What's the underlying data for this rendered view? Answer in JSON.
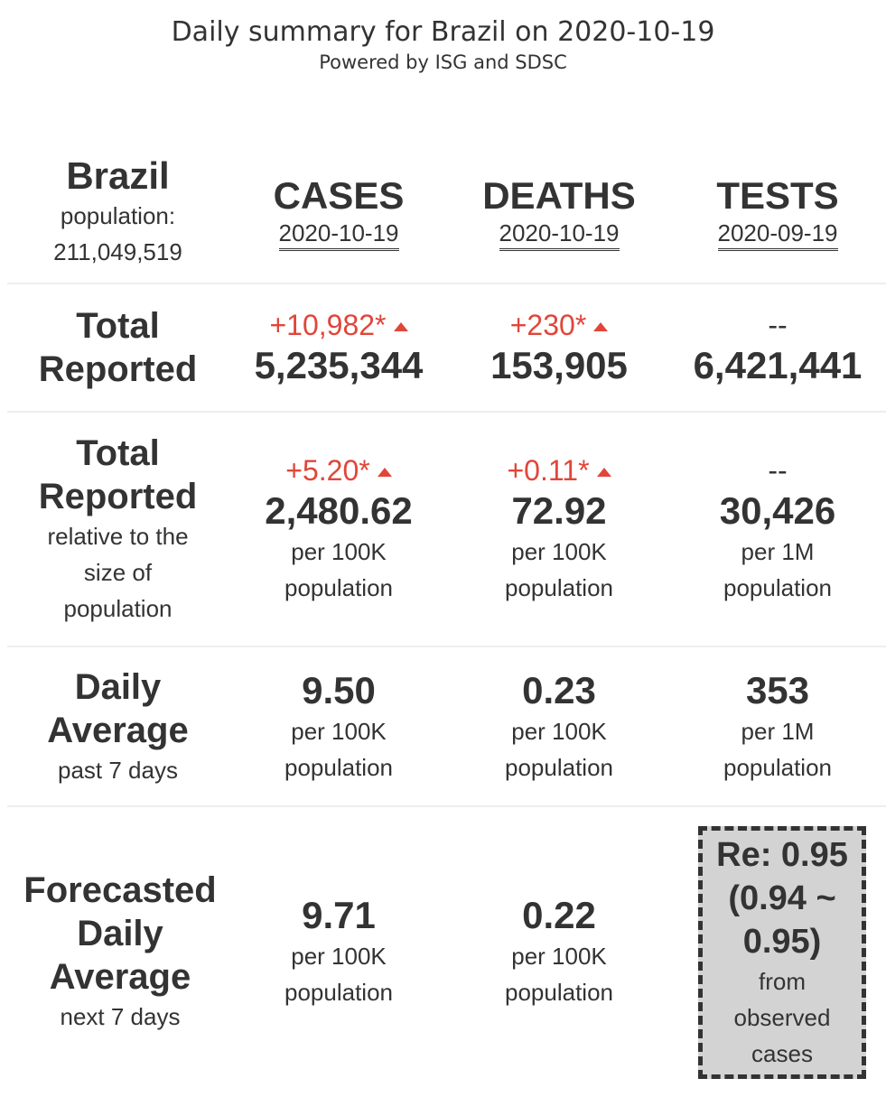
{
  "header": {
    "title": "Daily summary for Brazil on 2020-10-19",
    "subtitle": "Powered by ISG and SDSC"
  },
  "country": {
    "name": "Brazil",
    "population_label": "population:",
    "population_value": "211,049,519"
  },
  "columns": [
    {
      "title": "CASES",
      "date": "2020-10-19"
    },
    {
      "title": "DEATHS",
      "date": "2020-10-19"
    },
    {
      "title": "TESTS",
      "date": "2020-09-19"
    }
  ],
  "rows": {
    "total_reported": {
      "label_line1": "Total",
      "label_line2": "Reported",
      "cases": {
        "delta": "+10,982*",
        "value": "5,235,344"
      },
      "deaths": {
        "delta": "+230*",
        "value": "153,905"
      },
      "tests": {
        "delta": "--",
        "value": "6,421,441"
      }
    },
    "relative": {
      "label_line1": "Total",
      "label_line2": "Reported",
      "label_sub": "relative to the size of population",
      "cases": {
        "delta": "+5.20*",
        "value": "2,480.62",
        "unit1": "per 100K",
        "unit2": "population"
      },
      "deaths": {
        "delta": "+0.11*",
        "value": "72.92",
        "unit1": "per 100K",
        "unit2": "population"
      },
      "tests": {
        "delta": "--",
        "value": "30,426",
        "unit1": "per 1M",
        "unit2": "population"
      }
    },
    "daily_average": {
      "label_line1": "Daily",
      "label_line2": "Average",
      "label_sub": "past 7 days",
      "cases": {
        "value": "9.50",
        "unit1": "per 100K",
        "unit2": "population"
      },
      "deaths": {
        "value": "0.23",
        "unit1": "per 100K",
        "unit2": "population"
      },
      "tests": {
        "value": "353",
        "unit1": "per 1M",
        "unit2": "population"
      }
    },
    "forecast": {
      "label_line1": "Forecasted",
      "label_line2": "Daily",
      "label_line3": "Average",
      "label_sub": "next 7 days",
      "cases": {
        "value": "9.71",
        "unit1": "per 100K",
        "unit2": "population"
      },
      "deaths": {
        "value": "0.22",
        "unit1": "per 100K",
        "unit2": "population"
      },
      "re": {
        "line1": "Re: 0.95",
        "line2": "(0.94 ~",
        "line3": "0.95)",
        "sub1": "from",
        "sub2": "observed",
        "sub3": "cases"
      }
    }
  },
  "colors": {
    "increase": "#e0463a",
    "text": "#333333",
    "re_box": "#d3d3d3"
  }
}
